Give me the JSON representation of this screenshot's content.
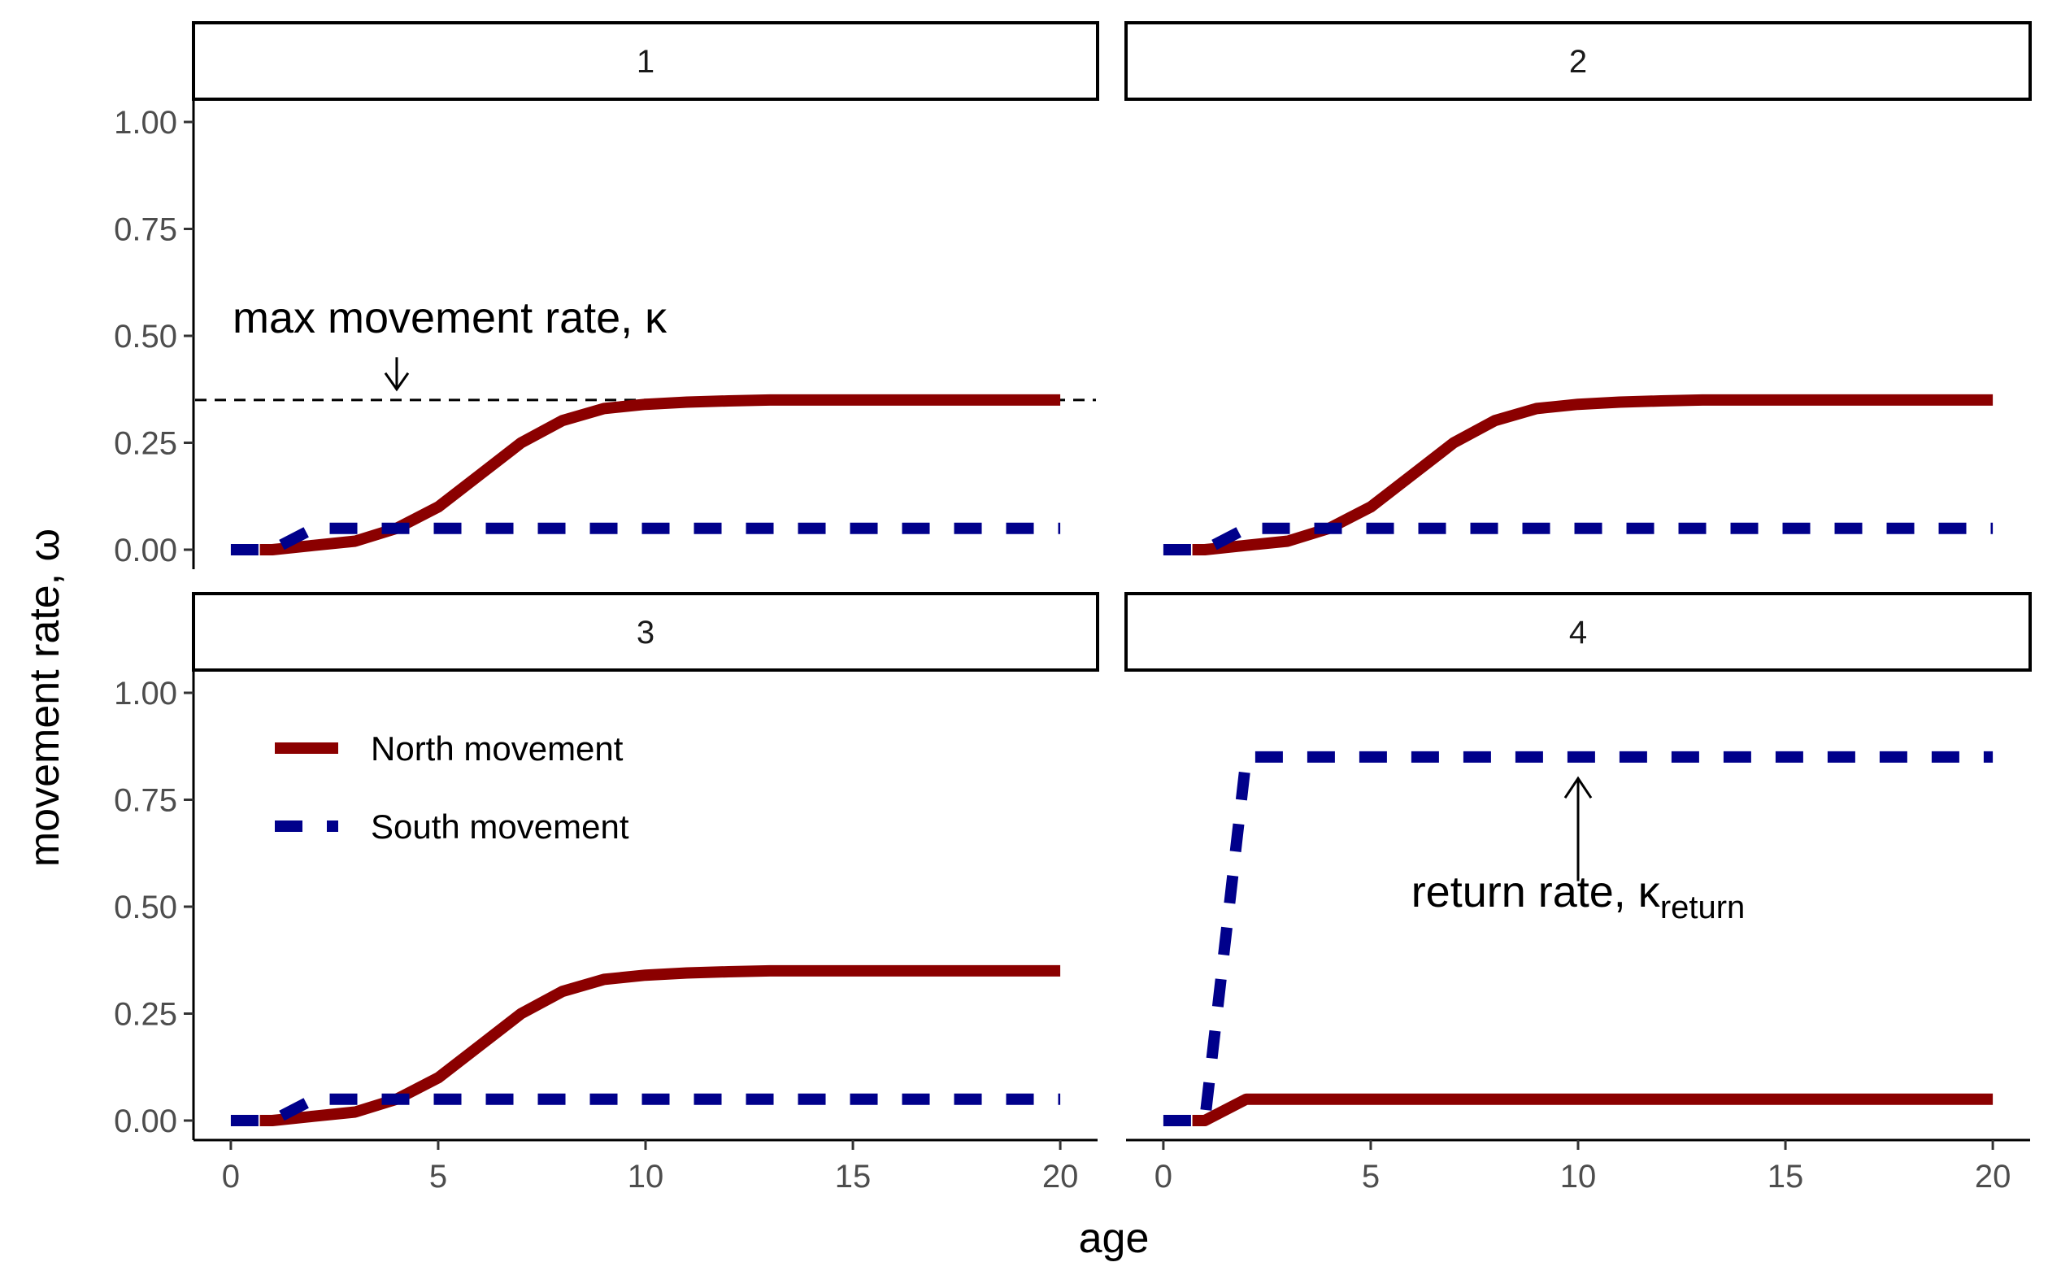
{
  "chart_data": {
    "type": "line",
    "facet_layout": "2x2",
    "xlabel": "age",
    "ylabel": "movement rate, ω",
    "xlim": [
      0,
      20
    ],
    "ylim": [
      0,
      1
    ],
    "x_ticks": [
      "0",
      "5",
      "10",
      "15",
      "20"
    ],
    "y_ticks": [
      "0.00",
      "0.25",
      "0.50",
      "0.75",
      "1.00"
    ],
    "grid": false,
    "legend": {
      "placement": "inside panel 3, top-left",
      "entries": [
        {
          "label": "North movement",
          "color": "#8b0000",
          "style": "solid"
        },
        {
          "label": "South movement",
          "color": "#00008b",
          "style": "dashed"
        }
      ]
    },
    "panels": [
      {
        "strip": "1",
        "series": [
          {
            "name": "North movement",
            "color": "#8b0000",
            "style": "solid",
            "x": [
              0.7,
              1,
              2,
              3,
              4,
              5,
              6,
              7,
              8,
              9,
              10,
              11,
              12,
              13,
              14,
              15,
              16,
              17,
              18,
              19,
              20
            ],
            "y": [
              0,
              0,
              0.01,
              0.02,
              0.05,
              0.1,
              0.175,
              0.25,
              0.302,
              0.33,
              0.34,
              0.345,
              0.348,
              0.35,
              0.35,
              0.35,
              0.35,
              0.35,
              0.35,
              0.35,
              0.35
            ]
          },
          {
            "name": "South movement",
            "color": "#00008b",
            "style": "dashed",
            "x": [
              0,
              1,
              2,
              3,
              4,
              5,
              6,
              7,
              8,
              9,
              10,
              11,
              12,
              13,
              14,
              15,
              16,
              17,
              18,
              19,
              20
            ],
            "y": [
              0,
              0,
              0.05,
              0.05,
              0.05,
              0.05,
              0.05,
              0.05,
              0.05,
              0.05,
              0.05,
              0.05,
              0.05,
              0.05,
              0.05,
              0.05,
              0.05,
              0.05,
              0.05,
              0.05,
              0.05
            ]
          }
        ],
        "reference_line": {
          "y": 0.35,
          "style": "dashed",
          "color": "#000000"
        },
        "annotation": {
          "text": "max movement rate, κ",
          "arrow_x": 4,
          "arrow_from": 0.45,
          "arrow_to": 0.375
        }
      },
      {
        "strip": "2",
        "series": [
          {
            "name": "North movement",
            "color": "#8b0000",
            "style": "solid",
            "x": [
              0.7,
              1,
              2,
              3,
              4,
              5,
              6,
              7,
              8,
              9,
              10,
              11,
              12,
              13,
              14,
              15,
              16,
              17,
              18,
              19,
              20
            ],
            "y": [
              0,
              0,
              0.01,
              0.02,
              0.05,
              0.1,
              0.175,
              0.25,
              0.302,
              0.33,
              0.34,
              0.345,
              0.348,
              0.35,
              0.35,
              0.35,
              0.35,
              0.35,
              0.35,
              0.35,
              0.35
            ]
          },
          {
            "name": "South movement",
            "color": "#00008b",
            "style": "dashed",
            "x": [
              0,
              1,
              2,
              3,
              4,
              5,
              6,
              7,
              8,
              9,
              10,
              11,
              12,
              13,
              14,
              15,
              16,
              17,
              18,
              19,
              20
            ],
            "y": [
              0,
              0,
              0.05,
              0.05,
              0.05,
              0.05,
              0.05,
              0.05,
              0.05,
              0.05,
              0.05,
              0.05,
              0.05,
              0.05,
              0.05,
              0.05,
              0.05,
              0.05,
              0.05,
              0.05,
              0.05
            ]
          }
        ]
      },
      {
        "strip": "3",
        "series": [
          {
            "name": "North movement",
            "color": "#8b0000",
            "style": "solid",
            "x": [
              0.7,
              1,
              2,
              3,
              4,
              5,
              6,
              7,
              8,
              9,
              10,
              11,
              12,
              13,
              14,
              15,
              16,
              17,
              18,
              19,
              20
            ],
            "y": [
              0,
              0,
              0.01,
              0.02,
              0.05,
              0.1,
              0.175,
              0.25,
              0.302,
              0.33,
              0.34,
              0.345,
              0.348,
              0.35,
              0.35,
              0.35,
              0.35,
              0.35,
              0.35,
              0.35,
              0.35
            ]
          },
          {
            "name": "South movement",
            "color": "#00008b",
            "style": "dashed",
            "x": [
              0,
              1,
              2,
              3,
              4,
              5,
              6,
              7,
              8,
              9,
              10,
              11,
              12,
              13,
              14,
              15,
              16,
              17,
              18,
              19,
              20
            ],
            "y": [
              0,
              0,
              0.05,
              0.05,
              0.05,
              0.05,
              0.05,
              0.05,
              0.05,
              0.05,
              0.05,
              0.05,
              0.05,
              0.05,
              0.05,
              0.05,
              0.05,
              0.05,
              0.05,
              0.05,
              0.05
            ]
          }
        ],
        "has_legend": true
      },
      {
        "strip": "4",
        "series": [
          {
            "name": "North movement",
            "color": "#8b0000",
            "style": "solid",
            "x": [
              0.7,
              1,
              2,
              3,
              4,
              5,
              6,
              7,
              8,
              9,
              10,
              11,
              12,
              13,
              14,
              15,
              16,
              17,
              18,
              19,
              20
            ],
            "y": [
              0,
              0,
              0.05,
              0.05,
              0.05,
              0.05,
              0.05,
              0.05,
              0.05,
              0.05,
              0.05,
              0.05,
              0.05,
              0.05,
              0.05,
              0.05,
              0.05,
              0.05,
              0.05,
              0.05,
              0.05
            ]
          },
          {
            "name": "South movement",
            "color": "#00008b",
            "style": "dashed",
            "x": [
              0,
              1,
              2,
              3,
              4,
              5,
              6,
              7,
              8,
              9,
              10,
              11,
              12,
              13,
              14,
              15,
              16,
              17,
              18,
              19,
              20
            ],
            "y": [
              0,
              0,
              0.85,
              0.85,
              0.85,
              0.85,
              0.85,
              0.85,
              0.85,
              0.85,
              0.85,
              0.85,
              0.85,
              0.85,
              0.85,
              0.85,
              0.85,
              0.85,
              0.85,
              0.85,
              0.85
            ]
          }
        ],
        "annotation": {
          "text_main": "return rate, κ",
          "text_sub": "return",
          "arrow_x": 10,
          "arrow_from": 0.56,
          "arrow_to": 0.8
        }
      }
    ]
  }
}
